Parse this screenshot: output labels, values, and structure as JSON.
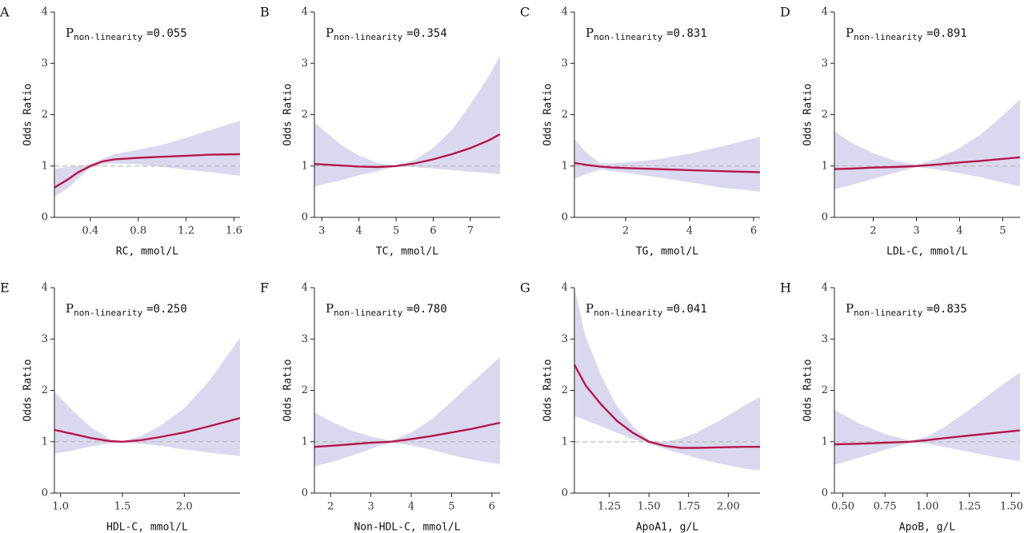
{
  "style": {
    "line_color": "#B5174B",
    "band_color": "#DAD8EE",
    "reference_color": "#BBBBBB",
    "axis_color": "#222222"
  },
  "chart_data": [
    {
      "panel": "A",
      "type": "line",
      "xlabel": "RC, mmol/L",
      "ylabel": "Odds Ratio",
      "xlim": [
        0.1,
        1.65
      ],
      "ylim": [
        0,
        4
      ],
      "xticks": [
        {
          "v": 0.4,
          "label": "0.4"
        },
        {
          "v": 0.8,
          "label": "0.8"
        },
        {
          "v": 1.2,
          "label": "1.2"
        },
        {
          "v": 1.6,
          "label": "1.6"
        }
      ],
      "yticks": [
        0,
        1,
        2,
        3,
        4
      ],
      "p_nonlinearity": "=0.055",
      "x": [
        0.1,
        0.2,
        0.3,
        0.4,
        0.5,
        0.6,
        0.8,
        1.0,
        1.2,
        1.4,
        1.65
      ],
      "y": [
        0.58,
        0.72,
        0.88,
        1.0,
        1.09,
        1.13,
        1.16,
        1.18,
        1.2,
        1.22,
        1.23
      ],
      "lower": [
        0.4,
        0.55,
        0.76,
        0.96,
        1.04,
        1.05,
        1.03,
        0.98,
        0.93,
        0.88,
        0.81
      ],
      "upper": [
        0.95,
        0.98,
        1.0,
        1.04,
        1.14,
        1.23,
        1.32,
        1.41,
        1.55,
        1.7,
        1.88
      ]
    },
    {
      "panel": "B",
      "type": "line",
      "xlabel": "TC, mmol/L",
      "ylabel": "Odds Ratio",
      "xlim": [
        2.8,
        7.8
      ],
      "ylim": [
        0,
        4
      ],
      "xticks": [
        {
          "v": 3,
          "label": "3"
        },
        {
          "v": 4,
          "label": "4"
        },
        {
          "v": 5,
          "label": "5"
        },
        {
          "v": 6,
          "label": "6"
        },
        {
          "v": 7,
          "label": "7"
        }
      ],
      "yticks": [
        0,
        1,
        2,
        3,
        4
      ],
      "p_nonlinearity": "=0.354",
      "x": [
        2.8,
        3.5,
        4.0,
        4.5,
        5.0,
        5.5,
        6.0,
        6.5,
        7.0,
        7.5,
        7.8
      ],
      "y": [
        1.04,
        1.01,
        0.99,
        0.98,
        1.0,
        1.05,
        1.13,
        1.23,
        1.35,
        1.5,
        1.62
      ],
      "lower": [
        0.6,
        0.72,
        0.82,
        0.9,
        0.99,
        0.98,
        0.95,
        0.92,
        0.89,
        0.86,
        0.84
      ],
      "upper": [
        1.85,
        1.42,
        1.2,
        1.06,
        1.01,
        1.12,
        1.35,
        1.7,
        2.2,
        2.75,
        3.15
      ]
    },
    {
      "panel": "C",
      "type": "line",
      "xlabel": "TG, mmol/L",
      "ylabel": "Odds Ratio",
      "xlim": [
        0.4,
        6.2
      ],
      "ylim": [
        0,
        4
      ],
      "xticks": [
        {
          "v": 2,
          "label": "2"
        },
        {
          "v": 4,
          "label": "4"
        },
        {
          "v": 6,
          "label": "6"
        }
      ],
      "yticks": [
        0,
        1,
        2,
        3,
        4
      ],
      "p_nonlinearity": "=0.831",
      "x": [
        0.4,
        0.8,
        1.2,
        1.6,
        2.0,
        3.0,
        4.0,
        5.0,
        6.2
      ],
      "y": [
        1.06,
        1.02,
        0.99,
        0.97,
        0.96,
        0.94,
        0.92,
        0.9,
        0.88
      ],
      "lower": [
        0.75,
        0.85,
        0.93,
        0.9,
        0.87,
        0.78,
        0.68,
        0.58,
        0.5
      ],
      "upper": [
        1.52,
        1.24,
        1.06,
        1.05,
        1.07,
        1.13,
        1.24,
        1.38,
        1.57
      ]
    },
    {
      "panel": "D",
      "type": "line",
      "xlabel": "LDL-C, mmol/L",
      "ylabel": "Odds Ratio",
      "xlim": [
        1.1,
        5.4
      ],
      "ylim": [
        0,
        4
      ],
      "xticks": [
        {
          "v": 2,
          "label": "2"
        },
        {
          "v": 3,
          "label": "3"
        },
        {
          "v": 4,
          "label": "4"
        },
        {
          "v": 5,
          "label": "5"
        }
      ],
      "yticks": [
        0,
        1,
        2,
        3,
        4
      ],
      "p_nonlinearity": "=0.891",
      "x": [
        1.1,
        1.5,
        2.0,
        2.5,
        3.0,
        3.5,
        4.0,
        4.5,
        5.0,
        5.4
      ],
      "y": [
        0.94,
        0.95,
        0.97,
        0.98,
        1.0,
        1.03,
        1.07,
        1.1,
        1.14,
        1.17
      ],
      "lower": [
        0.55,
        0.63,
        0.75,
        0.87,
        0.98,
        0.93,
        0.86,
        0.78,
        0.68,
        0.6
      ],
      "upper": [
        1.68,
        1.45,
        1.25,
        1.1,
        1.02,
        1.15,
        1.35,
        1.62,
        1.98,
        2.3
      ]
    },
    {
      "panel": "E",
      "type": "line",
      "xlabel": "HDL-C, mmol/L",
      "ylabel": "Odds Ratio",
      "xlim": [
        0.95,
        2.45
      ],
      "ylim": [
        0,
        4
      ],
      "xticks": [
        {
          "v": 1.0,
          "label": "1.0"
        },
        {
          "v": 1.5,
          "label": "1.5"
        },
        {
          "v": 2.0,
          "label": "2.0"
        }
      ],
      "yticks": [
        0,
        1,
        2,
        3,
        4
      ],
      "p_nonlinearity": "=0.250",
      "x": [
        0.95,
        1.1,
        1.25,
        1.4,
        1.5,
        1.65,
        1.8,
        2.0,
        2.2,
        2.45
      ],
      "y": [
        1.23,
        1.15,
        1.07,
        1.01,
        1.0,
        1.03,
        1.09,
        1.18,
        1.3,
        1.46
      ],
      "lower": [
        0.77,
        0.83,
        0.91,
        0.97,
        0.99,
        0.96,
        0.92,
        0.85,
        0.79,
        0.72
      ],
      "upper": [
        1.97,
        1.6,
        1.27,
        1.05,
        1.01,
        1.11,
        1.3,
        1.65,
        2.18,
        3.02
      ]
    },
    {
      "panel": "F",
      "type": "line",
      "xlabel": "Non-HDL-C, mmol/L",
      "ylabel": "Odds Ratio",
      "xlim": [
        1.6,
        6.2
      ],
      "ylim": [
        0,
        4
      ],
      "xticks": [
        {
          "v": 2,
          "label": "2"
        },
        {
          "v": 3,
          "label": "3"
        },
        {
          "v": 4,
          "label": "4"
        },
        {
          "v": 5,
          "label": "5"
        },
        {
          "v": 6,
          "label": "6"
        }
      ],
      "yticks": [
        0,
        1,
        2,
        3,
        4
      ],
      "p_nonlinearity": "=0.780",
      "x": [
        1.6,
        2.0,
        2.5,
        3.0,
        3.5,
        4.0,
        4.5,
        5.0,
        5.5,
        6.2
      ],
      "y": [
        0.9,
        0.92,
        0.95,
        0.98,
        1.0,
        1.05,
        1.11,
        1.18,
        1.25,
        1.37
      ],
      "lower": [
        0.52,
        0.6,
        0.72,
        0.86,
        0.98,
        0.93,
        0.84,
        0.74,
        0.65,
        0.56
      ],
      "upper": [
        1.57,
        1.4,
        1.22,
        1.1,
        1.02,
        1.18,
        1.43,
        1.78,
        2.15,
        2.65
      ]
    },
    {
      "panel": "G",
      "type": "line",
      "xlabel": "ApoA1, g/L",
      "ylabel": "Odds Ratio",
      "xlim": [
        1.03,
        2.2
      ],
      "ylim": [
        0,
        4
      ],
      "xticks": [
        {
          "v": 1.25,
          "label": "1.25"
        },
        {
          "v": 1.5,
          "label": "1.50"
        },
        {
          "v": 1.75,
          "label": "1.75"
        },
        {
          "v": 2.0,
          "label": "2.00"
        }
      ],
      "yticks": [
        0,
        1,
        2,
        3,
        4
      ],
      "p_nonlinearity": "=0.041",
      "x": [
        1.03,
        1.1,
        1.2,
        1.3,
        1.4,
        1.5,
        1.6,
        1.7,
        1.8,
        1.95,
        2.1,
        2.2
      ],
      "y": [
        2.5,
        2.1,
        1.72,
        1.4,
        1.17,
        1.0,
        0.92,
        0.88,
        0.88,
        0.89,
        0.9,
        0.9
      ],
      "lower": [
        1.5,
        1.42,
        1.3,
        1.17,
        1.05,
        0.97,
        0.86,
        0.77,
        0.68,
        0.57,
        0.48,
        0.44
      ],
      "upper": [
        4.0,
        3.05,
        2.28,
        1.68,
        1.3,
        1.03,
        0.99,
        1.06,
        1.18,
        1.42,
        1.7,
        1.87
      ]
    },
    {
      "panel": "H",
      "type": "line",
      "xlabel": "ApoB, g/L",
      "ylabel": "Odds Ratio",
      "xlim": [
        0.45,
        1.55
      ],
      "ylim": [
        0,
        4
      ],
      "xticks": [
        {
          "v": 0.5,
          "label": "0.50"
        },
        {
          "v": 0.75,
          "label": "0.75"
        },
        {
          "v": 1.0,
          "label": "1.00"
        },
        {
          "v": 1.25,
          "label": "1.25"
        },
        {
          "v": 1.5,
          "label": "1.50"
        }
      ],
      "yticks": [
        0,
        1,
        2,
        3,
        4
      ],
      "p_nonlinearity": "=0.835",
      "x": [
        0.45,
        0.6,
        0.75,
        0.9,
        1.0,
        1.1,
        1.25,
        1.4,
        1.55
      ],
      "y": [
        0.95,
        0.96,
        0.98,
        1.0,
        1.03,
        1.07,
        1.12,
        1.17,
        1.22
      ],
      "lower": [
        0.55,
        0.69,
        0.84,
        0.98,
        0.96,
        0.9,
        0.8,
        0.7,
        0.62
      ],
      "upper": [
        1.62,
        1.35,
        1.15,
        1.02,
        1.1,
        1.28,
        1.62,
        2.0,
        2.35
      ]
    }
  ]
}
